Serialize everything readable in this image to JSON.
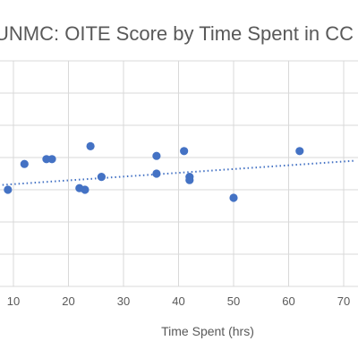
{
  "chart_data": {
    "type": "scatter",
    "title": "UNMC: OITE Score by Time Spent in CC",
    "xlabel": "Time Spent (hrs)",
    "ylabel": "",
    "xlim": [
      10,
      70
    ],
    "ylim": [
      0,
      7
    ],
    "x_ticks": [
      "10",
      "20",
      "30",
      "40",
      "50",
      "60",
      "70"
    ],
    "grid": "horizontal-and-vertical",
    "legend": "none",
    "series": [
      {
        "color": "#4472c4",
        "points": [
          {
            "x": 9,
            "y": 3.0
          },
          {
            "x": 12,
            "y": 3.8
          },
          {
            "x": 16,
            "y": 3.95
          },
          {
            "x": 17,
            "y": 3.95
          },
          {
            "x": 22,
            "y": 3.05
          },
          {
            "x": 23,
            "y": 3.0
          },
          {
            "x": 24,
            "y": 4.35
          },
          {
            "x": 26,
            "y": 3.4
          },
          {
            "x": 36,
            "y": 4.05
          },
          {
            "x": 36,
            "y": 3.5
          },
          {
            "x": 41,
            "y": 4.2
          },
          {
            "x": 42,
            "y": 3.4
          },
          {
            "x": 42,
            "y": 3.3
          },
          {
            "x": 50,
            "y": 2.75
          },
          {
            "x": 62,
            "y": 4.2
          }
        ],
        "trendline": {
          "type": "linear",
          "style": "dotted",
          "x0": 8,
          "y0": 3.15,
          "x1": 72,
          "y1": 3.9
        }
      }
    ]
  }
}
